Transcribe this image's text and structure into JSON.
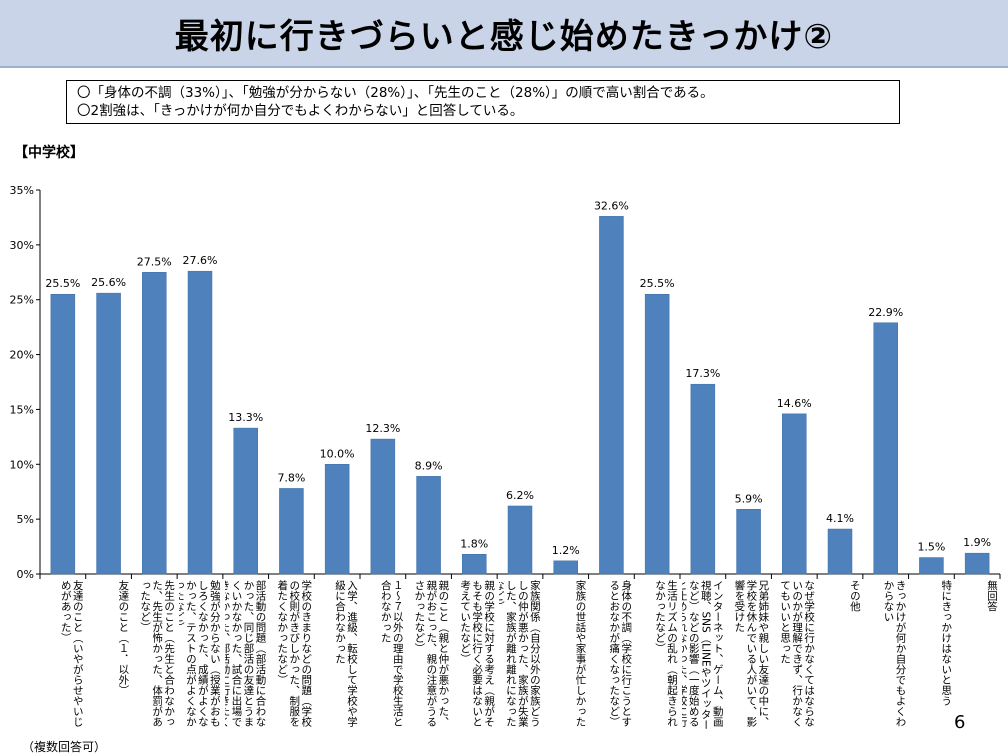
{
  "title": "最初に行きづらいと感じ始めたきっかけ②",
  "summary": [
    "〇「身体の不調（33%）」、「勉強が分からない（28%）」、「先生のこと（28%）」の順で高い割合である。",
    "〇2割強は、「きっかけが何か自分でもよくわからない」と回答している。"
  ],
  "section_label": "【中学校】",
  "note": "（複数回答可）",
  "page_number": "6",
  "chart_data": {
    "type": "bar",
    "ylim": [
      0,
      35
    ],
    "yticks": [
      "0%",
      "5%",
      "10%",
      "15%",
      "20%",
      "25%",
      "30%",
      "35%"
    ],
    "ytick_values": [
      0,
      5,
      10,
      15,
      20,
      25,
      30,
      35
    ],
    "bar_color": "#4f81bd",
    "grid": false,
    "categories": [
      "友達のこと（いやがらせやいじめがあった）",
      "友達のこと（１．以外）",
      "先生のこと（先生と合わなかった、先生が怖かった、体罰があったなど）",
      "勉強が分からない（授業がおもしろくなかった、成績がよくなかった、テストの点がよくなかったなど）",
      "部活動の問題（部活動に合わなかった、同じ部活の友達とうまくいかなかった、試合に出場できなかった、部活動に行きたくなかったなど）",
      "学校のきまりなどの問題（学校の校則がきびしかった、制服を着たくなかったなど）",
      "入学、進級、転校して学校や学級に合わなかった",
      "１～７以外の理由で学校生活と合わなかった",
      "親のこと（親と仲が悪かった、親がおこった、親の注意がうるさかったなど）",
      "親の学校に対する考え（親がそもそも学校に行く必要はないと考えていたなど）",
      "家族関係（自分以外の家族どうしの仲が悪かった、家族が失業した、家族が離れ離れになったなど）",
      "家族の世話や家事が忙しかった",
      "身体の不調（学校に行こうとするとおなかが痛くなったなど）",
      "生活リズムの乱れ（朝起きられなかったなど）",
      "インターネット、ゲーム、動画視聴、SNS（LINEやツイッターなど）などの影響（一度始めると止められなかった、学校に行くより楽しかったなど）",
      "兄弟姉妹や親しい友達の中に、学校を休んでいる人がいて、影響を受けた",
      "なぜ学校に行かなくてはならないのかが理解できず、行かなくてもいいと思った",
      "その他",
      "きっかけが何か自分でもよくわからない",
      "特にきっかけはないと思う",
      "無回答"
    ],
    "values": [
      25.5,
      25.6,
      27.5,
      27.6,
      13.3,
      7.8,
      10.0,
      12.3,
      8.9,
      1.8,
      6.2,
      1.2,
      32.6,
      25.5,
      17.3,
      5.9,
      14.6,
      4.1,
      22.9,
      1.5,
      1.9
    ],
    "data_labels": [
      "25.5%",
      "25.6%",
      "27.5%",
      "27.6%",
      "13.3%",
      "7.8%",
      "10.0%",
      "12.3%",
      "8.9%",
      "1.8%",
      "6.2%",
      "1.2%",
      "32.6%",
      "25.5%",
      "17.3%",
      "5.9%",
      "14.6%",
      "4.1%",
      "22.9%",
      "1.5%",
      "1.9%"
    ]
  }
}
